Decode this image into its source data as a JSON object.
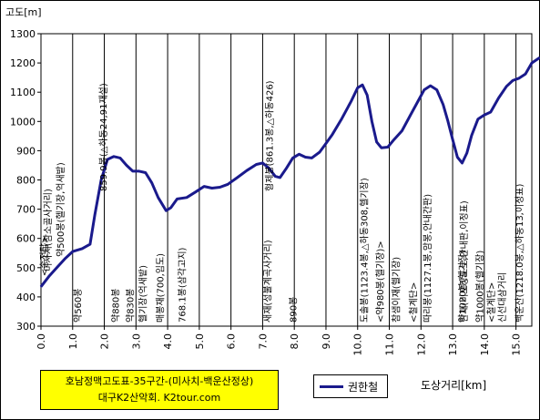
{
  "title_box": {
    "line1": "호남정맥고도표-35구간-(미사치-백운산정상)",
    "line2": "대구K2산악회. K2tour.com"
  },
  "chart_data": {
    "type": "line",
    "title": "",
    "ylabel": "고도[m]",
    "xlabel": "도상거리[km]",
    "xlim": [
      0,
      15.5
    ],
    "ylim": [
      300,
      1300
    ],
    "yticks": [
      300,
      400,
      500,
      600,
      700,
      800,
      900,
      1000,
      1100,
      1200,
      1300
    ],
    "xticks": [
      "0.0",
      "1.0",
      "2.0",
      "3.0",
      "4.0",
      "5.0",
      "6.0",
      "7.0",
      "8.0",
      "9.0",
      "10.0",
      "11.0",
      "12.0",
      "13.0",
      "14.0",
      "15.0"
    ],
    "grid": "vertical",
    "legend_position": "bottom",
    "series": [
      {
        "name": "권한철",
        "color": "#1a1a8c",
        "points": [
          [
            0.0,
            435
          ],
          [
            0.25,
            470
          ],
          [
            0.5,
            500
          ],
          [
            0.75,
            530
          ],
          [
            1.0,
            555
          ],
          [
            1.3,
            565
          ],
          [
            1.55,
            580
          ],
          [
            1.7,
            680
          ],
          [
            1.9,
            800
          ],
          [
            2.1,
            870
          ],
          [
            2.3,
            880
          ],
          [
            2.5,
            875
          ],
          [
            2.7,
            850
          ],
          [
            2.9,
            830
          ],
          [
            3.1,
            830
          ],
          [
            3.3,
            825
          ],
          [
            3.5,
            790
          ],
          [
            3.7,
            740
          ],
          [
            3.95,
            695
          ],
          [
            4.1,
            705
          ],
          [
            4.3,
            735
          ],
          [
            4.6,
            740
          ],
          [
            4.9,
            760
          ],
          [
            5.15,
            778
          ],
          [
            5.4,
            772
          ],
          [
            5.65,
            775
          ],
          [
            5.9,
            785
          ],
          [
            6.2,
            808
          ],
          [
            6.5,
            832
          ],
          [
            6.8,
            853
          ],
          [
            7.0,
            858
          ],
          [
            7.2,
            840
          ],
          [
            7.4,
            812
          ],
          [
            7.55,
            808
          ],
          [
            7.75,
            840
          ],
          [
            7.95,
            875
          ],
          [
            8.15,
            888
          ],
          [
            8.35,
            878
          ],
          [
            8.55,
            875
          ],
          [
            8.8,
            895
          ],
          [
            9.0,
            925
          ],
          [
            9.2,
            955
          ],
          [
            9.5,
            1010
          ],
          [
            9.8,
            1070
          ],
          [
            10.0,
            1115
          ],
          [
            10.15,
            1125
          ],
          [
            10.3,
            1090
          ],
          [
            10.45,
            1000
          ],
          [
            10.6,
            930
          ],
          [
            10.75,
            910
          ],
          [
            10.95,
            912
          ],
          [
            11.15,
            938
          ],
          [
            11.4,
            968
          ],
          [
            11.65,
            1018
          ],
          [
            11.9,
            1068
          ],
          [
            12.1,
            1108
          ],
          [
            12.3,
            1122
          ],
          [
            12.5,
            1108
          ],
          [
            12.7,
            1058
          ],
          [
            12.85,
            1002
          ],
          [
            13.0,
            938
          ],
          [
            13.15,
            878
          ],
          [
            13.3,
            858
          ],
          [
            13.45,
            892
          ],
          [
            13.6,
            952
          ],
          [
            13.8,
            1008
          ],
          [
            14.0,
            1022
          ],
          [
            14.2,
            1032
          ],
          [
            14.45,
            1080
          ],
          [
            14.7,
            1120
          ],
          [
            14.9,
            1140
          ],
          [
            15.1,
            1148
          ],
          [
            15.3,
            1162
          ],
          [
            15.5,
            1200
          ],
          [
            15.75,
            1218
          ]
        ]
      }
    ],
    "annotations": [
      {
        "x": 0.08,
        "text": "<송전탑>"
      },
      {
        "x": 0.2,
        "text": "미사치(참소골사거리)"
      },
      {
        "x": 0.6,
        "text": "약500봉(헬기장,억새밭)"
      },
      {
        "x": 1.15,
        "text": "약560봉"
      },
      {
        "x": 1.95,
        "text": "859.9봉(△하동24,91재설)"
      },
      {
        "x": 2.35,
        "text": "약880봉"
      },
      {
        "x": 2.8,
        "text": "약830봉"
      },
      {
        "x": 3.2,
        "text": "헬기장(억새밭)"
      },
      {
        "x": 3.75,
        "text": "매봉재(700,임도)"
      },
      {
        "x": 4.45,
        "text": "768.1봉(삼각고지)"
      },
      {
        "x": 7.15,
        "text": "새재(성불계곡사거리)"
      },
      {
        "x": 7.2,
        "text": "형제봉(861.3봉,△하동426)"
      },
      {
        "x": 7.95,
        "text": "890봉"
      },
      {
        "x": 10.2,
        "text": "도솔봉(1123.4봉,△하동308,헬기장)"
      },
      {
        "x": 10.7,
        "text": "<약980봉(헬기장)>"
      },
      {
        "x": 11.2,
        "text": "참샘이재(헬기장)"
      },
      {
        "x": 11.75,
        "text": "<철계단>"
      },
      {
        "x": 12.2,
        "text": "따리봉(1127.1봉,암봉,안내간판)"
      },
      {
        "x": 13.35,
        "text": "한재(비포장도로,안내판,이정표)"
      },
      {
        "x": 13.3,
        "text": "약1020봉(헬기장)"
      },
      {
        "x": 13.85,
        "text": "약1000봉(헬기장)"
      },
      {
        "x": 14.2,
        "text": "<철계단>"
      },
      {
        "x": 15.1,
        "text": "백운산(1218.0봉,△하동13,이정표)"
      },
      {
        "x": 14.55,
        "text": "신선대삼거리"
      }
    ]
  }
}
